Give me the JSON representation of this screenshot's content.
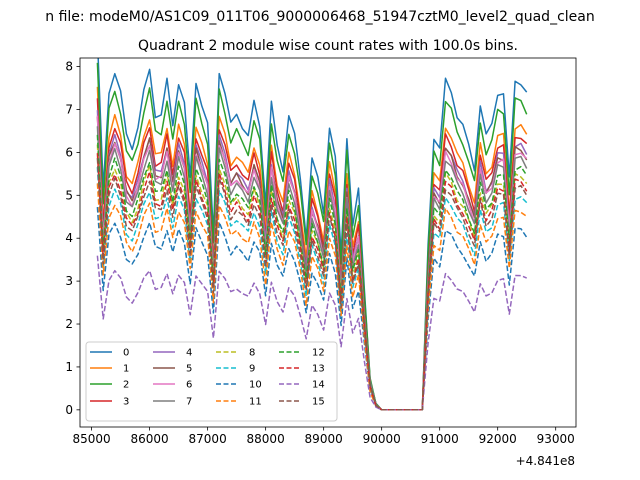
{
  "figure": {
    "suptitle": "n file: modeM0/AS1C09_011T06_9000006468_51947cztM0_level2_quad_clean",
    "title": "Quadrant 2 module wise count rates with 100.0s bins."
  },
  "chart_data": {
    "type": "line",
    "title": "Quadrant 2 module wise count rates with 100.0s bins.",
    "xlabel": "",
    "ylabel": "",
    "x_offset_label": "+4.841e8",
    "xlim": [
      84800,
      93350
    ],
    "ylim": [
      -0.4,
      8.2
    ],
    "x_ticks": [
      85000,
      86000,
      87000,
      88000,
      89000,
      90000,
      91000,
      92000,
      93000
    ],
    "y_ticks": [
      0,
      1,
      2,
      3,
      4,
      5,
      6,
      7,
      8
    ],
    "grid": false,
    "legend": {
      "placement": "lower-left",
      "columns": 4
    },
    "x_start": 85100,
    "x_step": 100,
    "profile": [
      1.7,
      1.0,
      1.45,
      1.55,
      1.45,
      1.25,
      1.2,
      1.3,
      1.45,
      1.55,
      1.35,
      1.35,
      1.5,
      1.3,
      1.5,
      1.4,
      1.05,
      1.5,
      1.4,
      1.3,
      0.8,
      1.55,
      1.45,
      1.3,
      1.35,
      1.3,
      1.25,
      1.4,
      1.3,
      0.95,
      1.4,
      1.2,
      1.1,
      1.35,
      1.25,
      1.05,
      0.8,
      1.15,
      1.05,
      0.9,
      1.3,
      1.15,
      0.7,
      1.25,
      0.85,
      1.0,
      0.55,
      0.15,
      0.03,
      0.0,
      0.0,
      0.0,
      0.0,
      0.0,
      0.0,
      0.0,
      0.0,
      0.75,
      1.25,
      1.2,
      1.5,
      1.45,
      1.35,
      1.3,
      1.2,
      1.1,
      1.4,
      1.25,
      1.3,
      1.45,
      1.45,
      1.05,
      1.5,
      1.5,
      1.45
    ],
    "series": [
      {
        "name": "0",
        "color": "#1f77b4",
        "dash": "solid",
        "scale": 5.1
      },
      {
        "name": "1",
        "color": "#ff7f0e",
        "dash": "solid",
        "scale": 4.4
      },
      {
        "name": "2",
        "color": "#2ca02c",
        "dash": "solid",
        "scale": 4.8
      },
      {
        "name": "3",
        "color": "#d62728",
        "dash": "solid",
        "scale": 4.25
      },
      {
        "name": "4",
        "color": "#9467bd",
        "dash": "solid",
        "scale": 4.1
      },
      {
        "name": "5",
        "color": "#8c564b",
        "dash": "solid",
        "scale": 4.05
      },
      {
        "name": "6",
        "color": "#e377c2",
        "dash": "solid",
        "scale": 4.0
      },
      {
        "name": "7",
        "color": "#7f7f7f",
        "dash": "solid",
        "scale": 3.9
      },
      {
        "name": "8",
        "color": "#bcbd22",
        "dash": "dashed",
        "scale": 3.65
      },
      {
        "name": "9",
        "color": "#17becf",
        "dash": "dashed",
        "scale": 3.3
      },
      {
        "name": "10",
        "color": "#1f77b4",
        "dash": "dashed",
        "scale": 2.8
      },
      {
        "name": "11",
        "color": "#ff7f0e",
        "dash": "dashed",
        "scale": 3.1
      },
      {
        "name": "12",
        "color": "#2ca02c",
        "dash": "dashed",
        "scale": 3.75
      },
      {
        "name": "13",
        "color": "#d62728",
        "dash": "dashed",
        "scale": 3.55
      },
      {
        "name": "14",
        "color": "#9467bd",
        "dash": "dashed",
        "scale": 2.1
      },
      {
        "name": "15",
        "color": "#8c564b",
        "dash": "dashed",
        "scale": 3.45
      }
    ]
  }
}
